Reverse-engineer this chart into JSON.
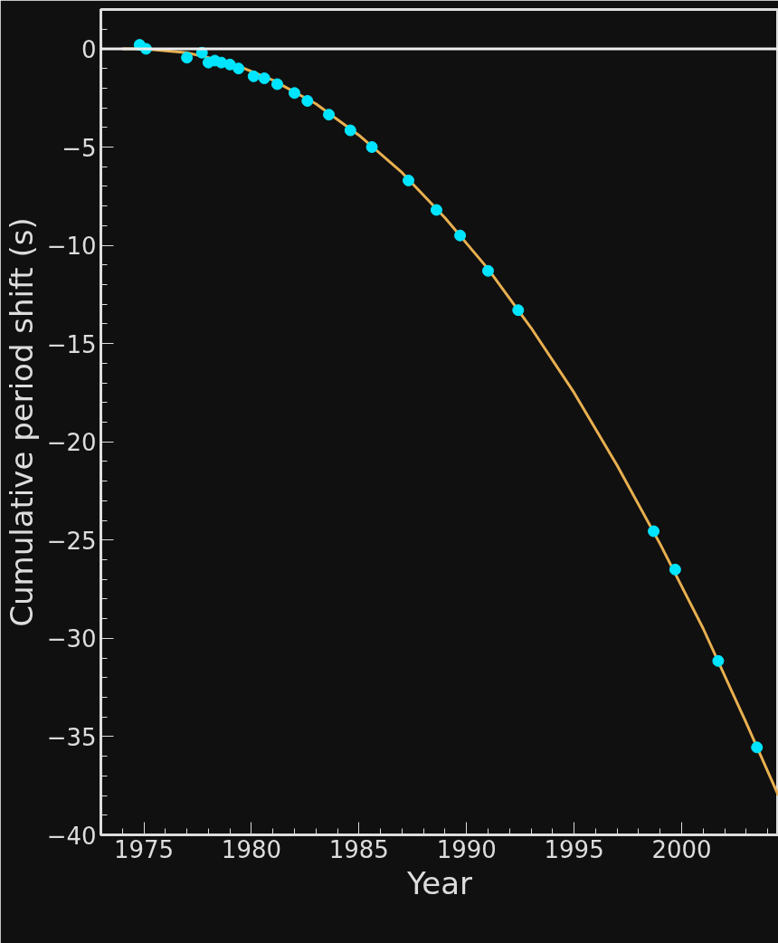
{
  "chart_data": {
    "type": "scatter",
    "xlabel": "Year",
    "ylabel": "Cumulative period shift (s)",
    "xlim": [
      1973,
      2004.5
    ],
    "ylim": [
      -40,
      2
    ],
    "xticks": [
      1975,
      1980,
      1985,
      1990,
      1995,
      2000
    ],
    "yticks": [
      -40,
      -35,
      -30,
      -25,
      -20,
      -15,
      -10,
      -5,
      0
    ],
    "grid": false,
    "marker": "circle",
    "ref_lines": [
      {
        "axis": "y",
        "value": 0,
        "color": "#eeeeee"
      }
    ],
    "series": [
      {
        "type": "line",
        "color": "#e8b050",
        "line_style": "solid",
        "marker": "none",
        "x": [
          1974,
          1975,
          1977,
          1979,
          1981,
          1983,
          1985,
          1987,
          1989,
          1991,
          1993,
          1995,
          1997,
          1999,
          2001,
          2003,
          2004.5
        ],
        "values": [
          0,
          0,
          -0.2,
          -0.7,
          -1.6,
          -2.8,
          -4.4,
          -6.3,
          -8.6,
          -11.2,
          -14.2,
          -17.5,
          -21.2,
          -25.2,
          -29.5,
          -34.3,
          -38.0
        ]
      },
      {
        "color": "#00e5ff",
        "x": [
          1974.8,
          1975.1,
          1977.0,
          1977.7,
          1978.0,
          1978.3,
          1978.6,
          1979.0,
          1979.4,
          1980.1,
          1980.6,
          1981.2,
          1982.0,
          1982.6,
          1983.6,
          1984.6,
          1985.6,
          1987.3,
          1988.6,
          1989.7,
          1991.0,
          1992.4,
          1998.7,
          1999.7,
          2001.7,
          2003.5
        ],
        "values": [
          0.2,
          0,
          -0.45,
          -0.2,
          -0.7,
          -0.6,
          -0.7,
          -0.8,
          -1.0,
          -1.4,
          -1.5,
          -1.8,
          -2.25,
          -2.65,
          -3.35,
          -4.15,
          -5.0,
          -6.7,
          -8.2,
          -9.5,
          -11.3,
          -13.3,
          -24.55,
          -26.5,
          -31.15,
          -35.55
        ]
      }
    ]
  }
}
